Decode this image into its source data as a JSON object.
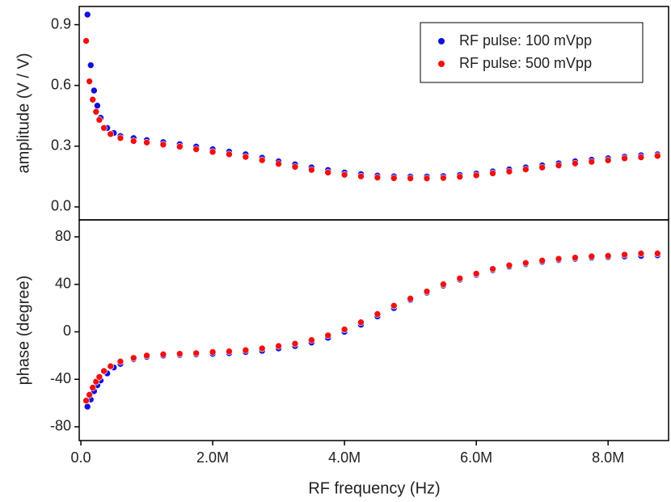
{
  "chart_data": [
    {
      "type": "scatter",
      "ylabel": "amplitude (V / V)",
      "legend": "upper right",
      "xlim": [
        -25000,
        8930000
      ],
      "ylim": [
        -0.064,
        0.99
      ],
      "yticks": [
        {
          "value": 0,
          "label": "0.0"
        },
        0.3,
        0.6,
        0.9
      ],
      "series": [
        {
          "name": "RF pulse: 100 mVpp",
          "color": "#1010e0",
          "x": [
            100000,
            150000,
            200000,
            250000,
            300000,
            400000,
            500000,
            600000,
            800000,
            1000000,
            1250000,
            1500000,
            1750000,
            2000000,
            2250000,
            2500000,
            2750000,
            3000000,
            3250000,
            3500000,
            3750000,
            4000000,
            4250000,
            4500000,
            4750000,
            5000000,
            5250000,
            5500000,
            5750000,
            6000000,
            6250000,
            6500000,
            6750000,
            7000000,
            7250000,
            7500000,
            7750000,
            8000000,
            8250000,
            8500000,
            8750000
          ],
          "values": [
            0.95,
            0.7,
            0.575,
            0.5,
            0.44,
            0.39,
            0.365,
            0.35,
            0.34,
            0.33,
            0.32,
            0.31,
            0.298,
            0.285,
            0.273,
            0.26,
            0.243,
            0.225,
            0.21,
            0.195,
            0.182,
            0.17,
            0.162,
            0.155,
            0.151,
            0.15,
            0.15,
            0.152,
            0.158,
            0.165,
            0.175,
            0.185,
            0.195,
            0.205,
            0.215,
            0.225,
            0.233,
            0.24,
            0.248,
            0.255,
            0.26
          ]
        },
        {
          "name": "RF pulse: 500 mVpp",
          "color": "#f01010",
          "x": [
            80000,
            130000,
            180000,
            230000,
            280000,
            350000,
            450000,
            600000,
            800000,
            1000000,
            1250000,
            1500000,
            1750000,
            2000000,
            2250000,
            2500000,
            2750000,
            3000000,
            3250000,
            3500000,
            3750000,
            4000000,
            4250000,
            4500000,
            4750000,
            5000000,
            5250000,
            5500000,
            5750000,
            6000000,
            6250000,
            6500000,
            6750000,
            7000000,
            7250000,
            7500000,
            7750000,
            8000000,
            8250000,
            8500000,
            8750000
          ],
          "values": [
            0.82,
            0.62,
            0.53,
            0.47,
            0.43,
            0.39,
            0.36,
            0.34,
            0.325,
            0.318,
            0.308,
            0.298,
            0.285,
            0.272,
            0.26,
            0.247,
            0.231,
            0.213,
            0.198,
            0.183,
            0.17,
            0.159,
            0.151,
            0.145,
            0.142,
            0.141,
            0.141,
            0.143,
            0.149,
            0.156,
            0.166,
            0.175,
            0.185,
            0.195,
            0.205,
            0.215,
            0.223,
            0.23,
            0.24,
            0.245,
            0.252
          ]
        }
      ]
    },
    {
      "type": "scatter",
      "ylabel": "phase (degree)",
      "xlabel": "RF frequency (Hz)",
      "xlim": [
        -25000,
        8930000
      ],
      "ylim": [
        -91.6,
        94.3
      ],
      "xticks": [
        {
          "value": 0,
          "label": "0.0"
        },
        {
          "value": 2000000,
          "label": "2.0M"
        },
        {
          "value": 4000000,
          "label": "4.0M"
        },
        {
          "value": 6000000,
          "label": "6.0M"
        },
        {
          "value": 8000000,
          "label": "8.0M"
        }
      ],
      "yticks": [
        -80,
        -40,
        0,
        40,
        80
      ],
      "series": [
        {
          "color": "#1010e0",
          "x": [
            100000,
            150000,
            200000,
            250000,
            300000,
            400000,
            500000,
            600000,
            800000,
            1000000,
            1250000,
            1500000,
            1750000,
            2000000,
            2250000,
            2500000,
            2750000,
            3000000,
            3250000,
            3500000,
            3750000,
            4000000,
            4250000,
            4500000,
            4750000,
            5000000,
            5250000,
            5500000,
            5750000,
            6000000,
            6250000,
            6500000,
            6750000,
            7000000,
            7250000,
            7500000,
            7750000,
            8000000,
            8250000,
            8500000,
            8750000
          ],
          "values": [
            -63,
            -57,
            -50,
            -45,
            -41,
            -35,
            -30,
            -27,
            -23,
            -21,
            -20,
            -19.5,
            -19,
            -18.5,
            -18,
            -17,
            -16,
            -14,
            -12,
            -9,
            -5,
            0,
            6,
            13,
            20,
            27,
            33,
            39,
            44,
            48,
            52,
            55,
            57,
            59,
            60.5,
            61.5,
            62.5,
            63,
            63.5,
            64,
            64.5
          ]
        },
        {
          "color": "#f01010",
          "x": [
            80000,
            130000,
            180000,
            230000,
            280000,
            350000,
            450000,
            600000,
            800000,
            1000000,
            1250000,
            1500000,
            1750000,
            2000000,
            2250000,
            2500000,
            2750000,
            3000000,
            3250000,
            3500000,
            3750000,
            4000000,
            4250000,
            4500000,
            4750000,
            5000000,
            5250000,
            5500000,
            5750000,
            6000000,
            6250000,
            6500000,
            6750000,
            7000000,
            7250000,
            7500000,
            7750000,
            8000000,
            8250000,
            8500000,
            8750000
          ],
          "values": [
            -58,
            -53,
            -47,
            -42,
            -38,
            -33,
            -29,
            -25,
            -22,
            -20,
            -19,
            -18.5,
            -18,
            -17,
            -16.5,
            -15.5,
            -14,
            -12,
            -10,
            -7,
            -3,
            2,
            8,
            15,
            22,
            28,
            34,
            40,
            45,
            49,
            53,
            56,
            58,
            60,
            61.5,
            62.5,
            63.5,
            64,
            65,
            66,
            66
          ]
        }
      ]
    }
  ]
}
